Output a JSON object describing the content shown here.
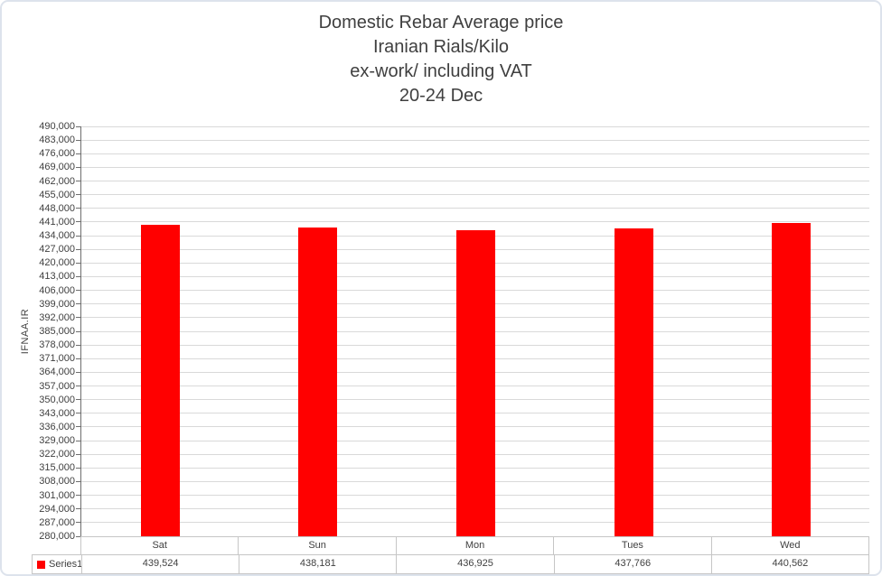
{
  "chart": {
    "title_lines": [
      "Domestic Rebar Average price",
      "Iranian Rials/Kilo",
      "ex-work/ including VAT",
      "20-24 Dec"
    ],
    "y_axis_title": "IFNAA.IR"
  },
  "chart_data": {
    "type": "bar",
    "title": "Domestic Rebar Average price\nIranian Rials/Kilo\nex-work/ including VAT\n20-24 Dec",
    "categories": [
      "Sat",
      "Sun",
      "Mon",
      "Tues",
      "Wed"
    ],
    "series": [
      {
        "name": "Series1",
        "values": [
          439524,
          438181,
          436925,
          437766,
          440562
        ]
      }
    ],
    "value_labels": [
      "439,524",
      "438,181",
      "436,925",
      "437,766",
      "440,562"
    ],
    "xlabel": "",
    "ylabel": "IFNAA.IR",
    "ylim": [
      280000,
      490000
    ],
    "ytick_step": 7000,
    "grid": true,
    "legend_position": "bottom-data-table",
    "bar_color": "#ff0000"
  },
  "colors": {
    "bar": "#ff0000",
    "gridline": "#d9d9d9",
    "axis_line": "#6e6e6e",
    "table_border": "#c6c6c6",
    "text": "#404040",
    "chart_border": "#dde3ec",
    "background": "#ffffff"
  }
}
